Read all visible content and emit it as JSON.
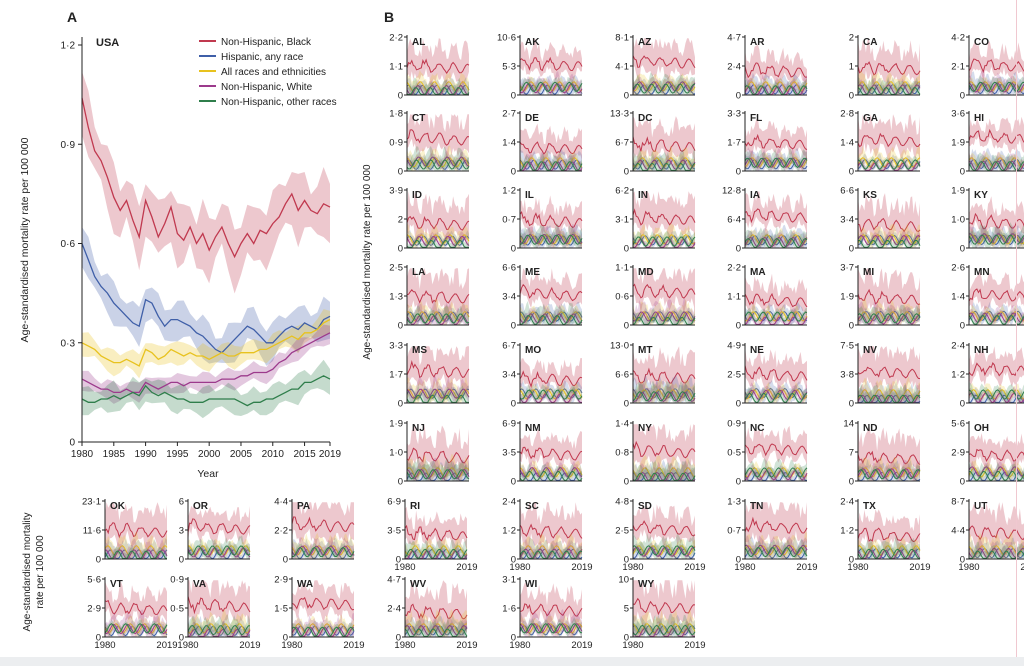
{
  "colors": {
    "black": "#c0394f",
    "hispanic": "#3f5fa8",
    "all": "#e8c21e",
    "white": "#9c3a8c",
    "other": "#2f7e4b"
  },
  "panelA": {
    "label": "A",
    "title": "USA",
    "ylabel": "Age-standardised mortality rate per 100 000",
    "xlabel": "Year",
    "yticks": [
      "0",
      "0·3",
      "0·6",
      "0·9",
      "1·2"
    ],
    "xticks": [
      "1980",
      "1985",
      "1990",
      "1995",
      "2000",
      "2005",
      "2010",
      "2015",
      "2019"
    ]
  },
  "panelB": {
    "label": "B",
    "ylabel": "Age-standardised mortality rate per 100 000"
  },
  "bottom_ylabel_1": "Age-standardised mortality",
  "bottom_ylabel_2": "rate per 100 000",
  "legend": [
    {
      "key": "black",
      "label": "Non-Hispanic, Black"
    },
    {
      "key": "hispanic",
      "label": "Hispanic, any race"
    },
    {
      "key": "all",
      "label": "All races and ethnicities"
    },
    {
      "key": "white",
      "label": "Non-Hispanic, White"
    },
    {
      "key": "other",
      "label": "Non-Hispanic, other races"
    }
  ],
  "chart_data": {
    "type": "line",
    "x": [
      1980,
      1981,
      1982,
      1983,
      1984,
      1985,
      1986,
      1987,
      1988,
      1989,
      1990,
      1991,
      1992,
      1993,
      1994,
      1995,
      1996,
      1997,
      1998,
      1999,
      2000,
      2001,
      2002,
      2003,
      2004,
      2005,
      2006,
      2007,
      2008,
      2009,
      2010,
      2011,
      2012,
      2013,
      2014,
      2015,
      2016,
      2017,
      2018,
      2019
    ],
    "ylim": [
      0,
      1.2
    ],
    "xlim": [
      1980,
      2019
    ],
    "series": [
      {
        "key": "black",
        "name": "Non-Hispanic, Black",
        "values": [
          1.04,
          0.95,
          0.88,
          0.85,
          0.8,
          0.74,
          0.7,
          0.73,
          0.67,
          0.62,
          0.73,
          0.68,
          0.62,
          0.66,
          0.71,
          0.63,
          0.61,
          0.65,
          0.6,
          0.63,
          0.58,
          0.62,
          0.65,
          0.6,
          0.56,
          0.6,
          0.63,
          0.6,
          0.64,
          0.63,
          0.66,
          0.68,
          0.72,
          0.75,
          0.7,
          0.73,
          0.7,
          0.69,
          0.72,
          0.71
        ]
      },
      {
        "key": "hispanic",
        "name": "Hispanic, any race",
        "values": [
          0.6,
          0.55,
          0.5,
          0.47,
          0.45,
          0.42,
          0.4,
          0.38,
          0.36,
          0.35,
          0.43,
          0.42,
          0.38,
          0.35,
          0.37,
          0.37,
          0.36,
          0.35,
          0.33,
          0.32,
          0.3,
          0.28,
          0.27,
          0.29,
          0.31,
          0.33,
          0.35,
          0.34,
          0.32,
          0.3,
          0.3,
          0.32,
          0.34,
          0.35,
          0.34,
          0.36,
          0.35,
          0.34,
          0.37,
          0.38
        ]
      },
      {
        "key": "all",
        "name": "All races and ethnicities",
        "values": [
          0.3,
          0.29,
          0.28,
          0.26,
          0.25,
          0.24,
          0.24,
          0.25,
          0.24,
          0.23,
          0.28,
          0.27,
          0.25,
          0.26,
          0.28,
          0.27,
          0.26,
          0.27,
          0.26,
          0.26,
          0.25,
          0.26,
          0.27,
          0.26,
          0.26,
          0.27,
          0.27,
          0.27,
          0.28,
          0.28,
          0.29,
          0.3,
          0.31,
          0.32,
          0.31,
          0.33,
          0.33,
          0.34,
          0.36,
          0.37
        ]
      },
      {
        "key": "white",
        "name": "Non-Hispanic, White",
        "values": [
          0.19,
          0.18,
          0.17,
          0.16,
          0.16,
          0.15,
          0.15,
          0.16,
          0.15,
          0.15,
          0.18,
          0.17,
          0.16,
          0.17,
          0.18,
          0.18,
          0.17,
          0.18,
          0.18,
          0.18,
          0.18,
          0.18,
          0.19,
          0.19,
          0.19,
          0.2,
          0.2,
          0.21,
          0.21,
          0.21,
          0.22,
          0.24,
          0.25,
          0.27,
          0.28,
          0.29,
          0.3,
          0.31,
          0.32,
          0.33
        ]
      },
      {
        "key": "other",
        "name": "Non-Hispanic, other races",
        "values": [
          0.13,
          0.12,
          0.12,
          0.13,
          0.13,
          0.14,
          0.13,
          0.14,
          0.15,
          0.14,
          0.17,
          0.15,
          0.14,
          0.15,
          0.14,
          0.13,
          0.13,
          0.12,
          0.12,
          0.12,
          0.13,
          0.13,
          0.13,
          0.13,
          0.13,
          0.12,
          0.11,
          0.12,
          0.12,
          0.13,
          0.13,
          0.14,
          0.15,
          0.16,
          0.16,
          0.18,
          0.18,
          0.19,
          0.2,
          0.19
        ]
      }
    ],
    "states": [
      {
        "name": "AL",
        "yticks": [
          "0",
          "1·1",
          "2·2"
        ]
      },
      {
        "name": "AK",
        "yticks": [
          "0",
          "5·3",
          "10·6"
        ]
      },
      {
        "name": "AZ",
        "yticks": [
          "0",
          "4·1",
          "8·1"
        ]
      },
      {
        "name": "AR",
        "yticks": [
          "0",
          "2·4",
          "4·7"
        ]
      },
      {
        "name": "CA",
        "yticks": [
          "0",
          "1",
          "2"
        ]
      },
      {
        "name": "CO",
        "yticks": [
          "0",
          "2·1",
          "4·2"
        ]
      },
      {
        "name": "CT",
        "yticks": [
          "0",
          "0·9",
          "1·8"
        ]
      },
      {
        "name": "DE",
        "yticks": [
          "0",
          "1·4",
          "2·7"
        ]
      },
      {
        "name": "DC",
        "yticks": [
          "0",
          "6·7",
          "13·3"
        ]
      },
      {
        "name": "FL",
        "yticks": [
          "0",
          "1·7",
          "3·3"
        ]
      },
      {
        "name": "GA",
        "yticks": [
          "0",
          "1·4",
          "2·8"
        ]
      },
      {
        "name": "HI",
        "yticks": [
          "0",
          "1·9",
          "3·6"
        ]
      },
      {
        "name": "ID",
        "yticks": [
          "0",
          "2",
          "3·9"
        ]
      },
      {
        "name": "IL",
        "yticks": [
          "0",
          "0·7",
          "1·2"
        ]
      },
      {
        "name": "IN",
        "yticks": [
          "0",
          "3·1",
          "6·2"
        ]
      },
      {
        "name": "IA",
        "yticks": [
          "0",
          "6·4",
          "12·8"
        ]
      },
      {
        "name": "KS",
        "yticks": [
          "0",
          "3·4",
          "6·6"
        ]
      },
      {
        "name": "KY",
        "yticks": [
          "0",
          "1·0",
          "1·9"
        ]
      },
      {
        "name": "LA",
        "yticks": [
          "0",
          "1·3",
          "2·5"
        ]
      },
      {
        "name": "ME",
        "yticks": [
          "0",
          "3·4",
          "6·6"
        ]
      },
      {
        "name": "MD",
        "yticks": [
          "0",
          "0·6",
          "1·1"
        ]
      },
      {
        "name": "MA",
        "yticks": [
          "0",
          "1·1",
          "2·2"
        ]
      },
      {
        "name": "MI",
        "yticks": [
          "0",
          "1·9",
          "3·7"
        ]
      },
      {
        "name": "MN",
        "yticks": [
          "0",
          "1·4",
          "2·6"
        ]
      },
      {
        "name": "MS",
        "yticks": [
          "0",
          "1·7",
          "3·3"
        ]
      },
      {
        "name": "MO",
        "yticks": [
          "0",
          "3·4",
          "6·7"
        ]
      },
      {
        "name": "MT",
        "yticks": [
          "0",
          "6·6",
          "13·0"
        ]
      },
      {
        "name": "NE",
        "yticks": [
          "0",
          "2·5",
          "4·9"
        ]
      },
      {
        "name": "NV",
        "yticks": [
          "0",
          "3·8",
          "7·5"
        ]
      },
      {
        "name": "NH",
        "yticks": [
          "0",
          "1·2",
          "2·4"
        ]
      },
      {
        "name": "NJ",
        "yticks": [
          "0",
          "1·0",
          "1·9"
        ]
      },
      {
        "name": "NM",
        "yticks": [
          "0",
          "3·5",
          "6·9"
        ]
      },
      {
        "name": "NY",
        "yticks": [
          "0",
          "0·8",
          "1·4"
        ]
      },
      {
        "name": "NC",
        "yticks": [
          "0",
          "0·5",
          "0·9"
        ]
      },
      {
        "name": "ND",
        "yticks": [
          "0",
          "7",
          "14"
        ]
      },
      {
        "name": "OH",
        "yticks": [
          "0",
          "2·9",
          "5·6"
        ]
      },
      {
        "name": "OK",
        "yticks": [
          "0",
          "11·6",
          "23·1"
        ]
      },
      {
        "name": "OR",
        "yticks": [
          "0",
          "3",
          "6"
        ]
      },
      {
        "name": "PA",
        "yticks": [
          "0",
          "2·2",
          "4·4"
        ]
      },
      {
        "name": "RI",
        "yticks": [
          "0",
          "3·5",
          "6·9"
        ]
      },
      {
        "name": "SC",
        "yticks": [
          "0",
          "1·2",
          "2·4"
        ]
      },
      {
        "name": "SD",
        "yticks": [
          "0",
          "2·5",
          "4·8"
        ]
      },
      {
        "name": "TN",
        "yticks": [
          "0",
          "0·7",
          "1·3"
        ]
      },
      {
        "name": "TX",
        "yticks": [
          "0",
          "1·2",
          "2·4"
        ]
      },
      {
        "name": "UT",
        "yticks": [
          "0",
          "4·4",
          "8·7"
        ]
      },
      {
        "name": "VT",
        "yticks": [
          "0",
          "2·9",
          "5·6"
        ]
      },
      {
        "name": "VA",
        "yticks": [
          "0",
          "0·5",
          "0·9"
        ]
      },
      {
        "name": "WA",
        "yticks": [
          "0",
          "1·5",
          "2·9"
        ]
      },
      {
        "name": "WV",
        "yticks": [
          "0",
          "2·4",
          "4·7"
        ]
      },
      {
        "name": "WI",
        "yticks": [
          "0",
          "1·6",
          "3·1"
        ]
      },
      {
        "name": "WY",
        "yticks": [
          "0",
          "5",
          "10"
        ]
      }
    ],
    "state_xticks": [
      "1980",
      "2019"
    ]
  }
}
